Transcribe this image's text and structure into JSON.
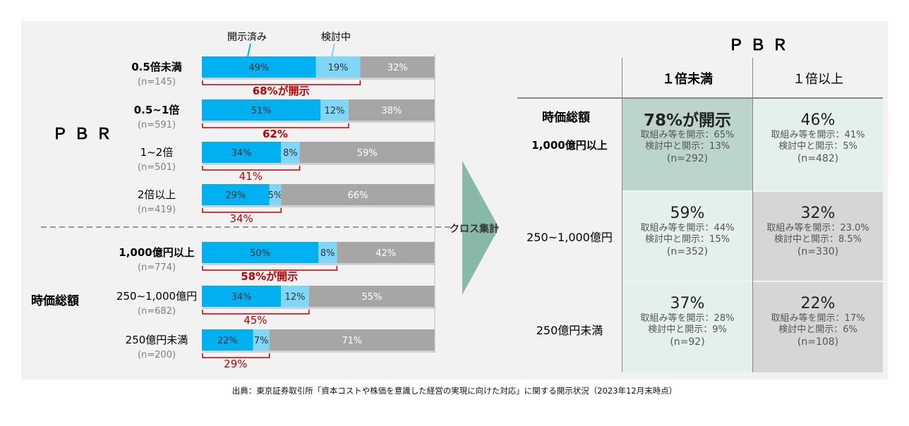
{
  "legend": {
    "disclosed": "開示済み",
    "considering": "検討中"
  },
  "colors": {
    "disclosed": "#00b0f0",
    "considering": "#7fd6f7",
    "other": "#a6a6a6",
    "red": "#c00000",
    "cell_dark": "#bcd5cb",
    "cell_light": "#e4f0ec",
    "cell_gray": "#d6d6d6"
  },
  "left": {
    "pbr_label": "ＰＢＲ",
    "mc_label": "時価総額",
    "pbr_groups": [
      {
        "label": "0.5倍未満",
        "n": "(n=145)",
        "bold": true,
        "values": [
          49,
          19,
          32
        ],
        "labels": [
          "49%",
          "19%",
          "32%"
        ],
        "total": "68%が開示"
      },
      {
        "label": "0.5~1倍",
        "n": "(n=591)",
        "bold": true,
        "values": [
          51,
          12,
          38
        ],
        "labels": [
          "51%",
          "12%",
          "38%"
        ],
        "total": "62%"
      },
      {
        "label": "1~2倍",
        "n": "(n=501)",
        "bold": false,
        "values": [
          34,
          8,
          59
        ],
        "labels": [
          "34%",
          "8%",
          "59%"
        ],
        "total": "41%"
      },
      {
        "label": "2倍以上",
        "n": "(n=419)",
        "bold": false,
        "values": [
          29,
          5,
          66
        ],
        "labels": [
          "29%",
          "5%",
          "66%"
        ],
        "total": "34%"
      }
    ],
    "mc_groups": [
      {
        "label": "1,000億円以上",
        "n": "(n=774)",
        "bold": true,
        "values": [
          50,
          8,
          42
        ],
        "labels": [
          "50%",
          "8%",
          "42%"
        ],
        "total": "58%が開示"
      },
      {
        "label": "250~1,000億円",
        "n": "(n=682)",
        "bold": false,
        "values": [
          34,
          12,
          55
        ],
        "labels": [
          "34%",
          "12%",
          "55%"
        ],
        "total": "45%"
      },
      {
        "label": "250億円未満",
        "n": "(n=200)",
        "bold": false,
        "values": [
          22,
          7,
          71
        ],
        "labels": [
          "22%",
          "7%",
          "71%"
        ],
        "total": "29%"
      }
    ]
  },
  "arrow_label": "クロス集計",
  "matrix": {
    "title": "ＰＢＲ",
    "col_headers": [
      "１倍未満",
      "１倍以上"
    ],
    "row_title": "時価総額",
    "row_headers": [
      "1,000億円以上",
      "250~1,000億円",
      "250億円未満"
    ],
    "cells": [
      [
        {
          "big": "78%が開示",
          "line1": "取組み等を開示：65%",
          "line2": "検討中と開示：13%",
          "n": "(n=292)"
        },
        {
          "big": "46%",
          "line1": "取組み等を開示：41%",
          "line2": "検討中と開示：5%",
          "n": "(n=482)"
        }
      ],
      [
        {
          "big": "59%",
          "line1": "取組み等を開示：44%",
          "line2": "検討中と開示：15%",
          "n": "(n=352)"
        },
        {
          "big": "32%",
          "line1": "取組み等を開示：23.0%",
          "line2": "検討中と開示：8.5%",
          "n": "(n=330)"
        }
      ],
      [
        {
          "big": "37%",
          "line1": "取組み等を開示：28%",
          "line2": "検討中と開示：9%",
          "n": "(n=92)"
        },
        {
          "big": "22%",
          "line1": "取組み等を開示：17%",
          "line2": "検討中と開示：6%",
          "n": "(n=108)"
        }
      ]
    ]
  },
  "source": "出典：東京証券取引所「資本コストや株価を意識した経営の実現に向けた対応」に関する開示状況（2023年12月末時点）",
  "chart_data": {
    "type": "bar",
    "orientation": "horizontal-stacked",
    "categories": [
      "0.5倍未満",
      "0.5~1倍",
      "1~2倍",
      "2倍以上",
      "1,000億円以上",
      "250~1,000億円",
      "250億円未満"
    ],
    "series": [
      {
        "name": "開示済み",
        "values": [
          49,
          51,
          34,
          29,
          50,
          34,
          22
        ]
      },
      {
        "name": "検討中",
        "values": [
          19,
          12,
          8,
          5,
          8,
          12,
          7
        ]
      },
      {
        "values": [
          32,
          38,
          59,
          66,
          42,
          55,
          71
        ]
      }
    ],
    "annotations": [
      "68%が開示",
      "62%",
      "41%",
      "34%",
      "58%が開示",
      "45%",
      "29%"
    ],
    "xlim": [
      0,
      100
    ]
  }
}
